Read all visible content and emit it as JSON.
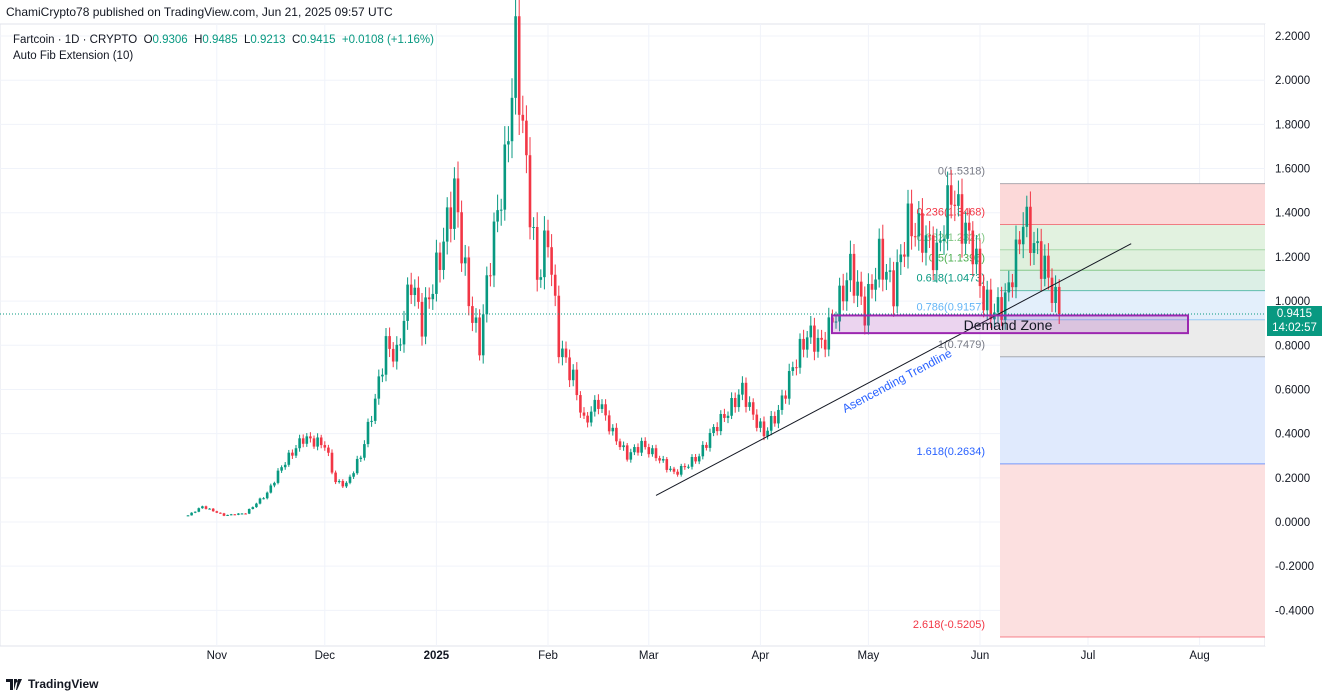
{
  "publisher": "ChamiCrypto78 published on TradingView.com, Jun 21, 2025 09:57 UTC",
  "legend": {
    "symbol": "Fartcoin · 1D · CRYPTO",
    "o_label": "O",
    "o": "0.9306",
    "h_label": "H",
    "h": "0.9485",
    "l_label": "L",
    "l": "0.9213",
    "c_label": "C",
    "c": "0.9415",
    "change": "+0.0108 (+1.16%)",
    "indicator": "Auto Fib Extension (10)"
  },
  "current_price": {
    "value": "0.9415",
    "countdown": "14:02:57"
  },
  "logo": "TradingView",
  "colors": {
    "up": "#089981",
    "down": "#f23645",
    "accent": "#2962ff",
    "zone": "#9c27b0"
  },
  "chart_data": {
    "type": "candlestick",
    "title": "Fartcoin · 1D · CRYPTO",
    "ylim": [
      -0.53,
      2.25
    ],
    "yticks": [
      "2.2000",
      "2.0000",
      "1.8000",
      "1.6000",
      "1.4000",
      "1.2000",
      "1.0000",
      "0.8000",
      "0.6000",
      "0.4000",
      "0.2000",
      "0.0000",
      "-0.2000",
      "-0.4000"
    ],
    "xticks": [
      {
        "label": "Nov",
        "day": 8
      },
      {
        "label": "Dec",
        "day": 38
      },
      {
        "label": "2025",
        "day": 69
      },
      {
        "label": "Feb",
        "day": 100
      },
      {
        "label": "Mar",
        "day": 128
      },
      {
        "label": "Apr",
        "day": 159
      },
      {
        "label": "May",
        "day": 189
      },
      {
        "label": "Jun",
        "day": 220
      },
      {
        "label": "Jul",
        "day": 250
      },
      {
        "label": "Aug",
        "day": 281
      }
    ],
    "x_unit": "days since Oct 24 2024",
    "close_keypoints": [
      [
        0,
        0.03
      ],
      [
        4,
        0.07
      ],
      [
        10,
        0.03
      ],
      [
        16,
        0.04
      ],
      [
        22,
        0.13
      ],
      [
        26,
        0.25
      ],
      [
        32,
        0.38
      ],
      [
        38,
        0.35
      ],
      [
        41,
        0.18
      ],
      [
        44,
        0.17
      ],
      [
        48,
        0.3
      ],
      [
        52,
        0.55
      ],
      [
        55,
        0.8
      ],
      [
        58,
        0.75
      ],
      [
        62,
        1.1
      ],
      [
        65,
        0.9
      ],
      [
        70,
        1.2
      ],
      [
        74,
        1.5
      ],
      [
        78,
        1.0
      ],
      [
        81,
        0.8
      ],
      [
        84,
        1.2
      ],
      [
        88,
        1.6
      ],
      [
        91,
        2.15
      ],
      [
        94,
        1.6
      ],
      [
        97,
        1.1
      ],
      [
        100,
        1.3
      ],
      [
        103,
        0.8
      ],
      [
        107,
        0.65
      ],
      [
        110,
        0.45
      ],
      [
        114,
        0.55
      ],
      [
        118,
        0.4
      ],
      [
        122,
        0.3
      ],
      [
        126,
        0.35
      ],
      [
        130,
        0.3
      ],
      [
        135,
        0.22
      ],
      [
        138,
        0.25
      ],
      [
        142,
        0.3
      ],
      [
        146,
        0.42
      ],
      [
        150,
        0.5
      ],
      [
        154,
        0.6
      ],
      [
        157,
        0.48
      ],
      [
        160,
        0.4
      ],
      [
        164,
        0.5
      ],
      [
        168,
        0.7
      ],
      [
        172,
        0.85
      ],
      [
        176,
        0.8
      ],
      [
        180,
        0.95
      ],
      [
        184,
        1.15
      ],
      [
        188,
        0.95
      ],
      [
        192,
        1.2
      ],
      [
        196,
        1.05
      ],
      [
        200,
        1.35
      ],
      [
        204,
        1.3
      ],
      [
        208,
        1.2
      ],
      [
        212,
        1.5
      ],
      [
        215,
        1.35
      ],
      [
        218,
        1.25
      ],
      [
        221,
        1.0
      ],
      [
        224,
        0.95
      ],
      [
        227,
        1.0
      ],
      [
        230,
        1.2
      ],
      [
        232,
        1.38
      ],
      [
        235,
        1.25
      ],
      [
        238,
        1.15
      ],
      [
        240,
        1.05
      ],
      [
        242,
        0.9415
      ]
    ],
    "fib_levels": [
      {
        "label": "0(1.5318)",
        "price": 1.5318,
        "color": "#787b86",
        "fill": "#fcd9d9"
      },
      {
        "label": "0.236(1.3468)",
        "price": 1.3468,
        "color": "#f23645",
        "fill": "#e2f2e0"
      },
      {
        "label": "0.382(1.2324)",
        "price": 1.2324,
        "color": "#81c784",
        "fill": "#dff0dd"
      },
      {
        "label": "0.5(1.1395)",
        "price": 1.1395,
        "color": "#4caf50",
        "fill": "#dcefe6"
      },
      {
        "label": "0.618(1.0473)",
        "price": 1.0473,
        "color": "#089981",
        "fill": "#e3effb"
      },
      {
        "label": "0.786(0.9157)",
        "price": 0.9157,
        "color": "#64b5f6",
        "fill": "#ebebeb"
      },
      {
        "label": "1(0.7479)",
        "price": 0.7479,
        "color": "#787b86",
        "fill": "#e0eafd"
      },
      {
        "label": "1.618(0.2634)",
        "price": 0.2634,
        "color": "#2962ff",
        "fill": "#fce0e0"
      },
      {
        "label": "2.618(-0.5205)",
        "price": -0.5205,
        "color": "#f23645",
        "fill": null
      }
    ],
    "annotations": {
      "demand_zone": "Demand Zone",
      "demand_zone_range": [
        0.855,
        0.935
      ],
      "trendline_label": "Asencending Trendline",
      "trendline": [
        [
          130,
          0.12
        ],
        [
          262,
          1.26
        ]
      ]
    }
  }
}
